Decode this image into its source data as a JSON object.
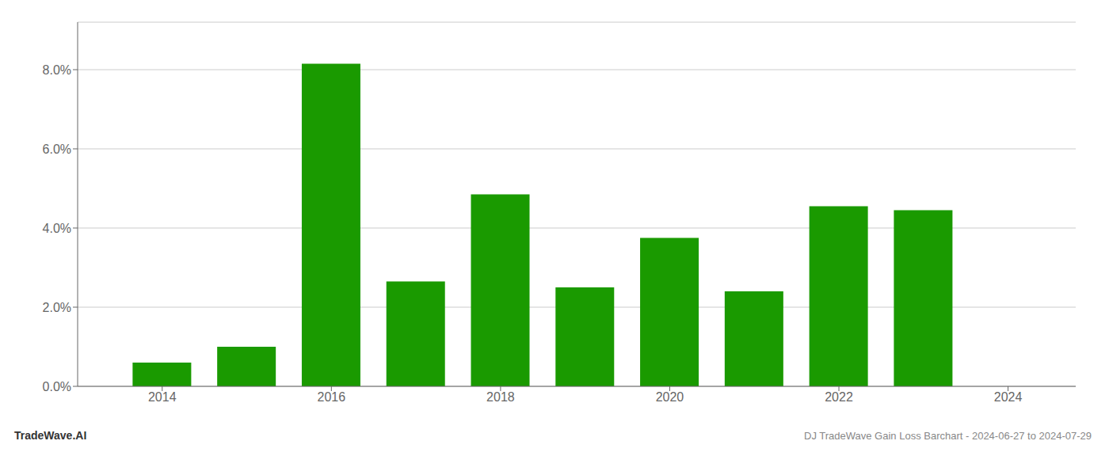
{
  "chart_data": {
    "type": "bar",
    "title": "DJ TradeWave Gain Loss Barchart - 2024-06-27 to 2024-07-29",
    "annotations": [
      "TradeWave.AI"
    ],
    "x": [
      2014,
      2015,
      2016,
      2017,
      2018,
      2019,
      2020,
      2021,
      2022,
      2023
    ],
    "values": [
      0.006,
      0.01,
      0.0815,
      0.0265,
      0.0485,
      0.025,
      0.0375,
      0.024,
      0.0455,
      0.0445
    ],
    "color": "#1a9a00",
    "xlim": [
      2013.0,
      2024.8
    ],
    "xticks": [
      2014,
      2016,
      2018,
      2020,
      2022,
      2024
    ],
    "ylim": [
      0,
      0.092
    ],
    "yticks": [
      {
        "value": 0.0,
        "label": "0.0%"
      },
      {
        "value": 0.02,
        "label": "2.0%"
      },
      {
        "value": 0.04,
        "label": "4.0%"
      },
      {
        "value": 0.06,
        "label": "6.0%"
      },
      {
        "value": 0.08,
        "label": "8.0%"
      }
    ],
    "grid": true
  }
}
